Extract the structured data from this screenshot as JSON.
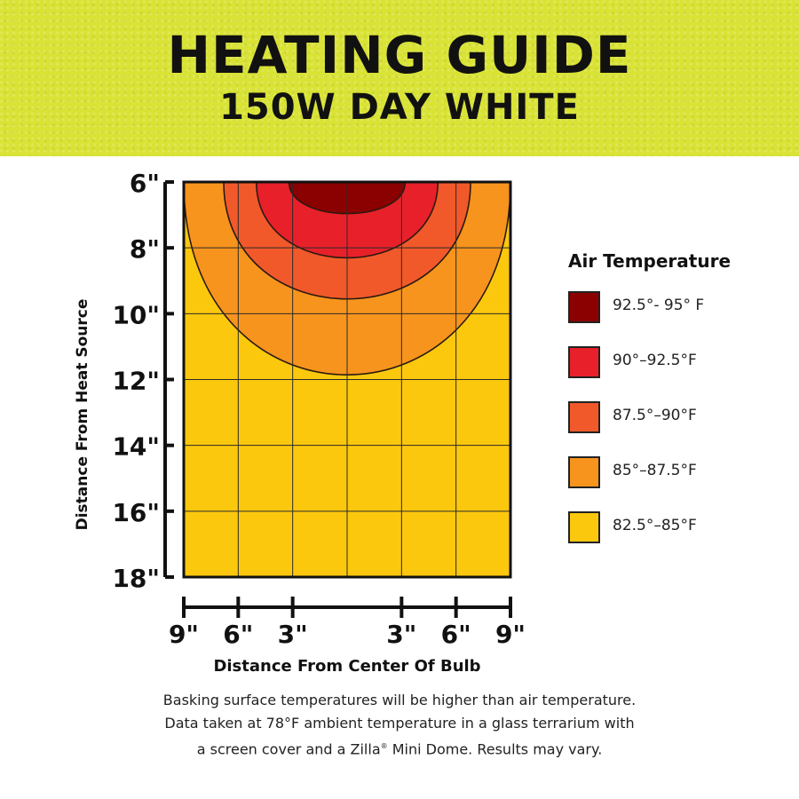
{
  "header": {
    "title": "HEATING GUIDE",
    "subtitle": "150W DAY WHITE"
  },
  "colors": {
    "banner": "#d9e336",
    "zone1": "#8b0000",
    "zone2": "#e8202a",
    "zone3": "#f1592a",
    "zone4": "#f7941d",
    "zone5": "#fcc80e",
    "grid": "#2a2a2a"
  },
  "chart_data": {
    "type": "heatmap",
    "title": "",
    "xlabel": "Distance From Center Of Bulb",
    "ylabel": "Distance From Heat Source",
    "x_ticks": [
      "9\"",
      "6\"",
      "3\"",
      "3\"",
      "6\"",
      "9\""
    ],
    "x_tick_values": [
      -9,
      -6,
      -3,
      3,
      6,
      9
    ],
    "y_ticks": [
      "6\"",
      "8\"",
      "10\"",
      "12\"",
      "14\"",
      "16\"",
      "18\""
    ],
    "y_tick_values": [
      6,
      8,
      10,
      12,
      14,
      16,
      18
    ],
    "xlim": [
      -9,
      9
    ],
    "ylim": [
      6,
      18
    ],
    "y_inverted": true,
    "grid": true,
    "legend_title": "Air Temperature",
    "legend_position": "right",
    "zones": [
      {
        "label": "92.5°- 95° F",
        "color": "#8b0000",
        "half_width": 3.2,
        "max_depth": 7.0
      },
      {
        "label": "90°–92.5°F",
        "color": "#e8202a",
        "half_width": 5.0,
        "max_depth": 8.4
      },
      {
        "label": "87.5°–90°F",
        "color": "#f1592a",
        "half_width": 6.8,
        "max_depth": 9.7
      },
      {
        "label": "85°–87.5°F",
        "color": "#f7941d",
        "half_width": 9.0,
        "max_depth": 12.1
      },
      {
        "label": "82.5°–85°F",
        "color": "#fcc80e",
        "half_width": 9.0,
        "max_depth": 18.0
      }
    ]
  },
  "footnote": {
    "line1": "Basking surface temperatures will be higher than air temperature.",
    "line2": "Data taken at 78°F ambient temperature in a glass terrarium with",
    "line3a": "a screen cover and a Zilla",
    "line3_mark": "®",
    "line3b": " Mini Dome. Results may vary."
  }
}
